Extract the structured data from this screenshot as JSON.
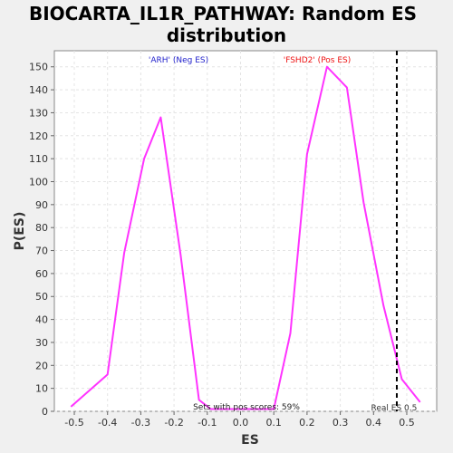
{
  "chart_data": {
    "type": "line",
    "title_line1": "BIOCARTA_IL1R_PATHWAY: Random ES",
    "title_line2": "distribution",
    "xlabel": "ES",
    "ylabel": "P(ES)",
    "xlim": [
      -0.56,
      0.59
    ],
    "ylim": [
      0,
      157
    ],
    "x_ticks": [
      -0.5,
      -0.4,
      -0.3,
      -0.2,
      -0.1,
      0.0,
      0.1,
      0.2,
      0.3,
      0.4,
      0.5
    ],
    "y_ticks": [
      0,
      10,
      20,
      30,
      40,
      50,
      60,
      70,
      80,
      90,
      100,
      110,
      120,
      130,
      140,
      150
    ],
    "grid": true,
    "series": [
      {
        "color": "#ff33ff",
        "x": [
          -0.51,
          -0.4,
          -0.35,
          -0.29,
          -0.24,
          -0.18,
          -0.125,
          -0.09,
          0.1,
          0.15,
          0.2,
          0.26,
          0.32,
          0.37,
          0.43,
          0.485,
          0.54
        ],
        "y": [
          2,
          16,
          69,
          110,
          128,
          68,
          5,
          1,
          1,
          34,
          112,
          150,
          141,
          91,
          46,
          14,
          4
        ]
      }
    ],
    "real_es": {
      "value": 0.47,
      "label": "Real ES 0.5"
    },
    "annotations": {
      "neg_label": "'ARH' (Neg ES)",
      "neg_color": "#2222cc",
      "pos_label": "'FSHD2' (Pos ES)",
      "pos_color": "#ee1111",
      "sets_label": "Sets with pos scores: 59%"
    }
  }
}
